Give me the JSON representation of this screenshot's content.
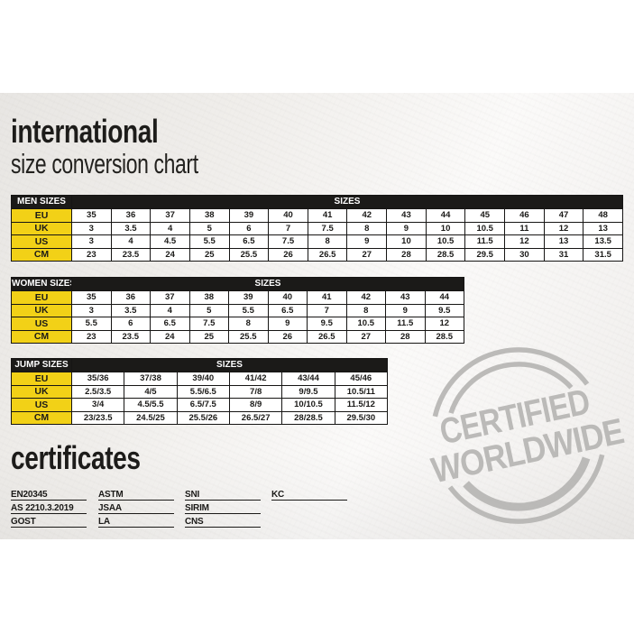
{
  "page": {
    "title_bold": "international",
    "title_sub": "size conversion chart"
  },
  "size_tables": [
    {
      "label": "MEN SIZES",
      "sizes_label": "SIZES",
      "rows": [
        {
          "label": "EU",
          "values": [
            "35",
            "36",
            "37",
            "38",
            "39",
            "40",
            "41",
            "42",
            "43",
            "44",
            "45",
            "46",
            "47",
            "48"
          ]
        },
        {
          "label": "UK",
          "values": [
            "3",
            "3.5",
            "4",
            "5",
            "6",
            "7",
            "7.5",
            "8",
            "9",
            "10",
            "10.5",
            "11",
            "12",
            "13"
          ]
        },
        {
          "label": "US",
          "values": [
            "3",
            "4",
            "4.5",
            "5.5",
            "6.5",
            "7.5",
            "8",
            "9",
            "10",
            "10.5",
            "11.5",
            "12",
            "13",
            "13.5"
          ]
        },
        {
          "label": "CM",
          "values": [
            "23",
            "23.5",
            "24",
            "25",
            "25.5",
            "26",
            "26.5",
            "27",
            "28",
            "28.5",
            "29.5",
            "30",
            "31",
            "31.5"
          ]
        }
      ]
    },
    {
      "label": "WOMEN SIZES",
      "sizes_label": "SIZES",
      "rows": [
        {
          "label": "EU",
          "values": [
            "35",
            "36",
            "37",
            "38",
            "39",
            "40",
            "41",
            "42",
            "43",
            "44"
          ]
        },
        {
          "label": "UK",
          "values": [
            "3",
            "3.5",
            "4",
            "5",
            "5.5",
            "6.5",
            "7",
            "8",
            "9",
            "9.5"
          ]
        },
        {
          "label": "US",
          "values": [
            "5.5",
            "6",
            "6.5",
            "7.5",
            "8",
            "9",
            "9.5",
            "10.5",
            "11.5",
            "12"
          ]
        },
        {
          "label": "CM",
          "values": [
            "23",
            "23.5",
            "24",
            "25",
            "25.5",
            "26",
            "26.5",
            "27",
            "28",
            "28.5"
          ]
        }
      ]
    },
    {
      "label": "JUMP SIZES",
      "sizes_label": "SIZES",
      "rows": [
        {
          "label": "EU",
          "values": [
            "35/36",
            "37/38",
            "39/40",
            "41/42",
            "43/44",
            "45/46"
          ]
        },
        {
          "label": "UK",
          "values": [
            "2.5/3.5",
            "4/5",
            "5.5/6.5",
            "7/8",
            "9/9.5",
            "10.5/11"
          ]
        },
        {
          "label": "US",
          "values": [
            "3/4",
            "4.5/5.5",
            "6.5/7.5",
            "8/9",
            "10/10.5",
            "11.5/12"
          ]
        },
        {
          "label": "CM",
          "values": [
            "23/23.5",
            "24.5/25",
            "25.5/26",
            "26.5/27",
            "28/28.5",
            "29.5/30"
          ]
        }
      ]
    }
  ],
  "certificates": {
    "title": "certificates",
    "columns": [
      [
        "EN20345",
        "AS 2210.3.2019",
        "GOST"
      ],
      [
        "ASTM",
        "JSAA",
        "LA"
      ],
      [
        "SNI",
        "SIRIM",
        "CNS"
      ],
      [
        "KC"
      ]
    ]
  },
  "stamp": {
    "line1": "CERTIFIED",
    "line2": "WORLDWIDE"
  },
  "colors": {
    "label_yellow": "#f2d117",
    "table_black": "#1b1a18",
    "stamp_gray": "#b4b3b1"
  }
}
